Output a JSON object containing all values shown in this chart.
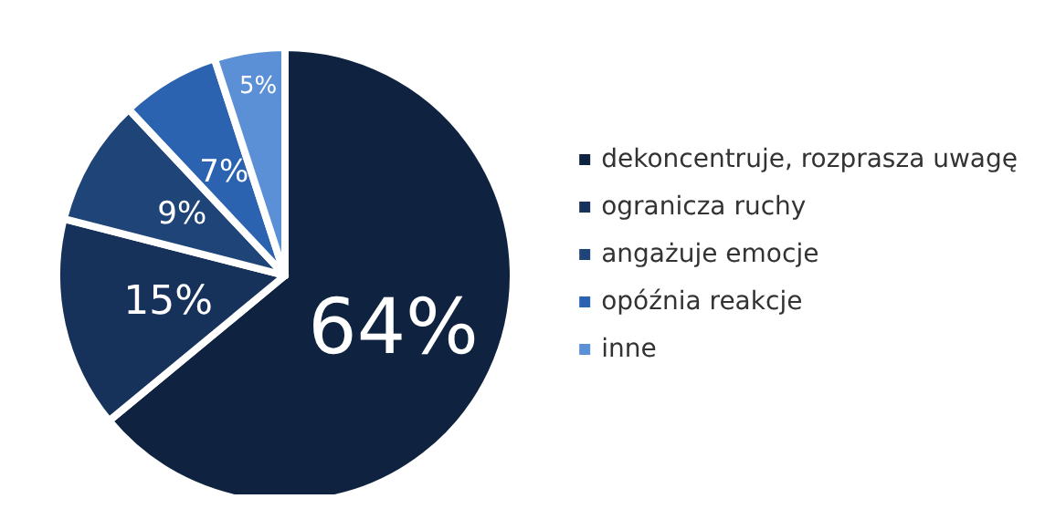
{
  "chart_data": {
    "type": "pie",
    "categories": [
      "dekoncentruje, rozprasza uwagę",
      "ogranicza ruchy",
      "angażuje emocje",
      "opóźnia reakcje",
      "inne"
    ],
    "values": [
      64,
      15,
      9,
      7,
      5
    ],
    "colors": [
      "#0f2341",
      "#17325a",
      "#1f4477",
      "#2b63b0",
      "#5b8fd6"
    ],
    "value_labels": [
      "64%",
      "15%",
      "9%",
      "7%",
      "5%"
    ],
    "legend": "right"
  }
}
